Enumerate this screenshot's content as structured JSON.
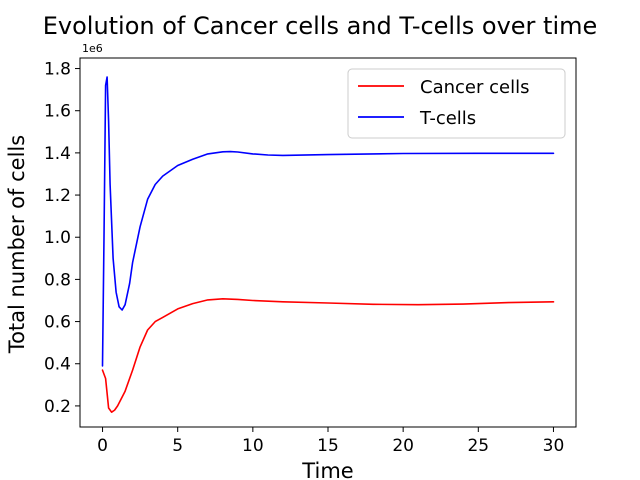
{
  "chart_data": {
    "type": "line",
    "title": "Evolution of Cancer cells and T-cells over time",
    "xlabel": "Time",
    "ylabel": "Total number of cells",
    "y_offset_label": "1e6",
    "xlim": [
      -1.5,
      31.5
    ],
    "ylim": [
      0.1,
      1.85
    ],
    "x_ticks": [
      0,
      5,
      10,
      15,
      20,
      25,
      30
    ],
    "x_tick_labels": [
      "0",
      "5",
      "10",
      "15",
      "20",
      "25",
      "30"
    ],
    "y_ticks": [
      0.2,
      0.4,
      0.6,
      0.8,
      1.0,
      1.2,
      1.4,
      1.6,
      1.8
    ],
    "y_tick_labels": [
      "0.2",
      "0.4",
      "0.6",
      "0.8",
      "1.0",
      "1.2",
      "1.4",
      "1.6",
      "1.8"
    ],
    "grid": false,
    "legend_position": "top-right",
    "series": [
      {
        "name": "Cancer cells",
        "color": "#ff0000",
        "x": [
          0,
          0.2,
          0.4,
          0.6,
          0.8,
          1.0,
          1.5,
          2.0,
          2.5,
          3.0,
          3.5,
          4.0,
          5.0,
          6.0,
          7.0,
          8.0,
          9.0,
          10.0,
          12.0,
          15.0,
          18.0,
          21.0,
          24.0,
          27.0,
          30.0
        ],
        "values": [
          0.37,
          0.33,
          0.19,
          0.17,
          0.18,
          0.2,
          0.27,
          0.37,
          0.48,
          0.56,
          0.6,
          0.62,
          0.66,
          0.685,
          0.703,
          0.708,
          0.705,
          0.7,
          0.694,
          0.688,
          0.682,
          0.68,
          0.683,
          0.69,
          0.694
        ]
      },
      {
        "name": "T-cells",
        "color": "#0000ff",
        "x": [
          0,
          0.1,
          0.2,
          0.3,
          0.4,
          0.5,
          0.7,
          0.9,
          1.1,
          1.3,
          1.5,
          1.8,
          2.0,
          2.5,
          3.0,
          3.5,
          4.0,
          5.0,
          6.0,
          7.0,
          8.0,
          8.5,
          9.0,
          10.0,
          11.0,
          12.0,
          15.0,
          20.0,
          25.0,
          30.0
        ],
        "values": [
          0.39,
          1.0,
          1.72,
          1.76,
          1.55,
          1.25,
          0.9,
          0.74,
          0.67,
          0.655,
          0.68,
          0.78,
          0.88,
          1.05,
          1.18,
          1.25,
          1.29,
          1.34,
          1.37,
          1.395,
          1.405,
          1.406,
          1.404,
          1.395,
          1.39,
          1.388,
          1.392,
          1.397,
          1.398,
          1.398
        ]
      }
    ]
  }
}
